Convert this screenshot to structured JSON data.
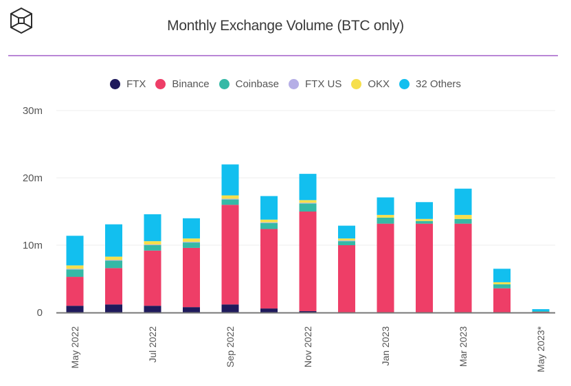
{
  "header": {
    "title": "Monthly Exchange Volume (BTC only)",
    "logo_icon": "cube-logo-icon"
  },
  "colors": {
    "divider": "#b986d6"
  },
  "chart_data": {
    "type": "bar",
    "stacked": true,
    "title": "Monthly Exchange Volume (BTC only)",
    "xlabel": "",
    "ylabel": "",
    "ylim": [
      0,
      30
    ],
    "y_unit": "m",
    "y_ticks": [
      {
        "value": 0,
        "label": "0"
      },
      {
        "value": 10,
        "label": "10m"
      },
      {
        "value": 20,
        "label": "20m"
      },
      {
        "value": 30,
        "label": "30m"
      }
    ],
    "grid": true,
    "legend_position": "top",
    "categories": [
      "May 2022",
      "Jun 2022",
      "Jul 2022",
      "Aug 2022",
      "Sep 2022",
      "Oct 2022",
      "Nov 2022",
      "Dec 2022",
      "Jan 2023",
      "Feb 2023",
      "Mar 2023",
      "Apr 2023",
      "May 2023*"
    ],
    "x_tick_labels": [
      {
        "index": 0,
        "label": "May 2022"
      },
      {
        "index": 2,
        "label": "Jul 2022"
      },
      {
        "index": 4,
        "label": "Sep 2022"
      },
      {
        "index": 6,
        "label": "Nov 2022"
      },
      {
        "index": 8,
        "label": "Jan 2023"
      },
      {
        "index": 10,
        "label": "Mar 2023"
      },
      {
        "index": 12,
        "label": "May 2023*"
      }
    ],
    "series": [
      {
        "name": "FTX",
        "color": "#1f1a5c",
        "values": [
          1.0,
          1.2,
          1.0,
          0.8,
          1.2,
          0.6,
          0.2,
          0,
          0,
          0,
          0,
          0,
          0
        ]
      },
      {
        "name": "Binance",
        "color": "#ee3e67",
        "values": [
          4.3,
          5.4,
          8.2,
          8.8,
          14.8,
          11.8,
          14.8,
          10.0,
          13.2,
          13.2,
          13.2,
          3.6,
          0.1
        ]
      },
      {
        "name": "Coinbase",
        "color": "#35b9a6",
        "values": [
          1.1,
          1.1,
          0.8,
          0.8,
          0.8,
          0.9,
          1.2,
          0.6,
          0.9,
          0.4,
          0.7,
          0.6,
          0.1
        ]
      },
      {
        "name": "FTX US",
        "color": "#b5aee6",
        "values": [
          0.1,
          0.1,
          0.1,
          0.1,
          0.1,
          0.1,
          0.1,
          0.1,
          0,
          0,
          0,
          0,
          0
        ]
      },
      {
        "name": "OKX",
        "color": "#f6df4c",
        "values": [
          0.5,
          0.5,
          0.5,
          0.5,
          0.5,
          0.4,
          0.4,
          0.3,
          0.4,
          0.3,
          0.6,
          0.3,
          0
        ]
      },
      {
        "name": "32 Others",
        "color": "#12bfef",
        "values": [
          4.4,
          4.8,
          4.0,
          3.0,
          4.6,
          3.5,
          3.9,
          1.9,
          2.6,
          2.5,
          3.9,
          2.0,
          0.3
        ]
      }
    ]
  }
}
